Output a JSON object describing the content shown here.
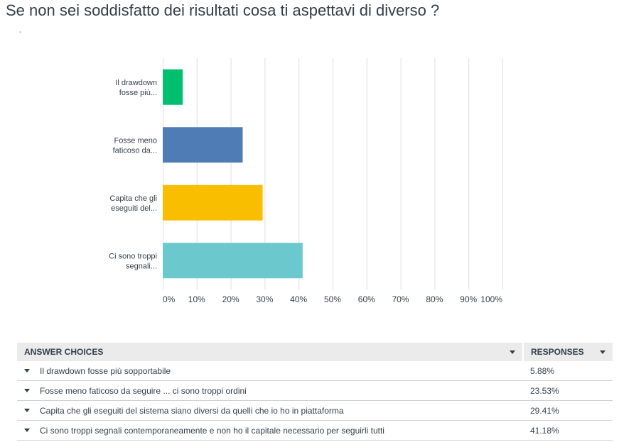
{
  "question": {
    "title": "Se non sei soddisfatto dei risultati cosa ti aspettavi di diverso ?",
    "subtitle_mark": "-"
  },
  "chart_data": {
    "type": "bar",
    "orientation": "horizontal",
    "categories": [
      [
        "Il drawdown",
        "fosse più..."
      ],
      [
        "Fosse meno",
        "faticoso da..."
      ],
      [
        "Capita che gli",
        "eseguiti del..."
      ],
      [
        "Ci sono troppi",
        "segnali..."
      ]
    ],
    "values": [
      5.88,
      23.53,
      29.41,
      41.18
    ],
    "colors": [
      "#00bf6f",
      "#507cb6",
      "#f9be00",
      "#6bc8cd"
    ],
    "xlim": [
      0,
      100
    ],
    "xticks": [
      "0%",
      "10%",
      "20%",
      "30%",
      "40%",
      "50%",
      "60%",
      "70%",
      "80%",
      "90%",
      "100%"
    ],
    "grid": true,
    "unit": "%"
  },
  "table": {
    "header_choices": "ANSWER CHOICES",
    "header_responses": "RESPONSES",
    "rows": [
      {
        "choice": "Il drawdown fosse più sopportabile",
        "response": "5.88%"
      },
      {
        "choice": "Fosse meno faticoso da seguire ... ci sono troppi ordini",
        "response": "23.53%"
      },
      {
        "choice": "Capita che gli eseguiti del sistema siano diversi da quelli che io ho in piattaforma",
        "response": "29.41%"
      },
      {
        "choice": "Ci sono troppi segnali contemporaneamente e non ho il capitale necessario per seguirli tutti",
        "response": "41.18%"
      }
    ]
  }
}
